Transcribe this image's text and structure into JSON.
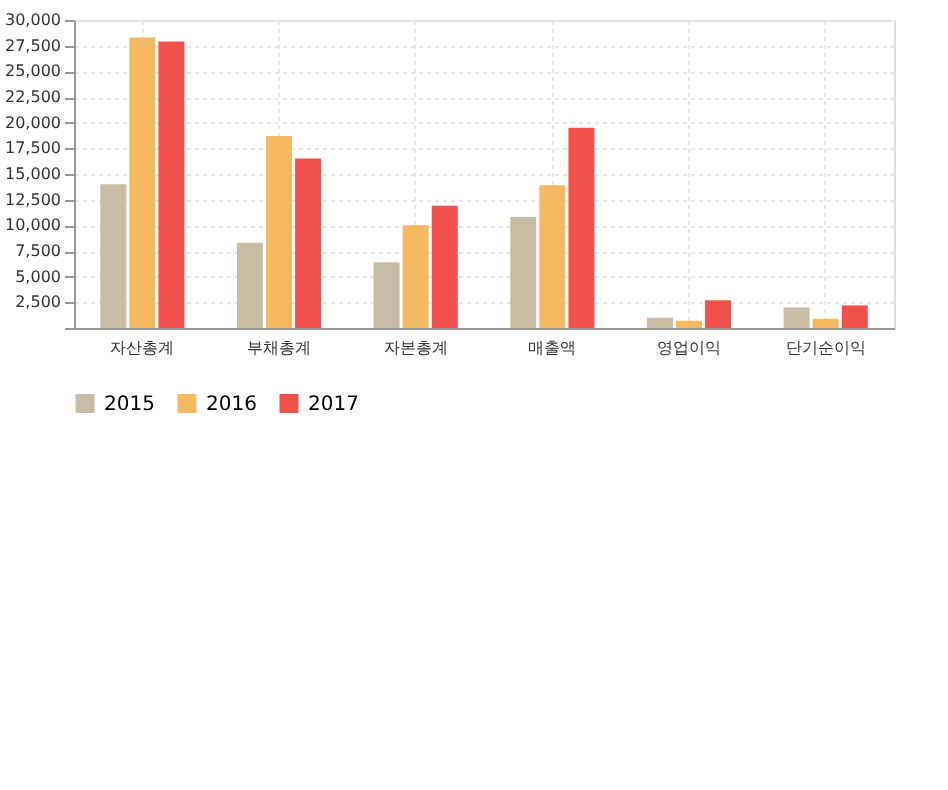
{
  "chart_data": {
    "type": "bar",
    "categories": [
      "자산총계",
      "부채총계",
      "자본총계",
      "매출액",
      "영업이익",
      "단기순이익"
    ],
    "series": [
      {
        "name": "2015",
        "color": "#c9bca5",
        "values": [
          14000,
          8300,
          6400,
          10800,
          1000,
          2000
        ]
      },
      {
        "name": "2016",
        "color": "#f5b961",
        "values": [
          28300,
          18700,
          10000,
          13900,
          700,
          900
        ]
      },
      {
        "name": "2017",
        "color": "#f2504b",
        "values": [
          27900,
          16500,
          11900,
          19500,
          2700,
          2200
        ]
      }
    ],
    "ylim": [
      0,
      30000
    ],
    "yticks": [
      {
        "value": 0,
        "label": null
      },
      {
        "value": 2500,
        "label": "2,500"
      },
      {
        "value": 5000,
        "label": "5,000"
      },
      {
        "value": 7500,
        "label": "7,500"
      },
      {
        "value": 10000,
        "label": "10,000"
      },
      {
        "value": 12500,
        "label": "12,500"
      },
      {
        "value": 15000,
        "label": "15,000"
      },
      {
        "value": 17500,
        "label": "17,500"
      },
      {
        "value": 20000,
        "label": "20,000"
      },
      {
        "value": 22500,
        "label": "22,500"
      },
      {
        "value": 25000,
        "label": "25,000"
      },
      {
        "value": 27500,
        "label": "27,500"
      },
      {
        "value": 30000,
        "label": "30,000"
      }
    ],
    "grid": true,
    "legend": "bottom"
  }
}
